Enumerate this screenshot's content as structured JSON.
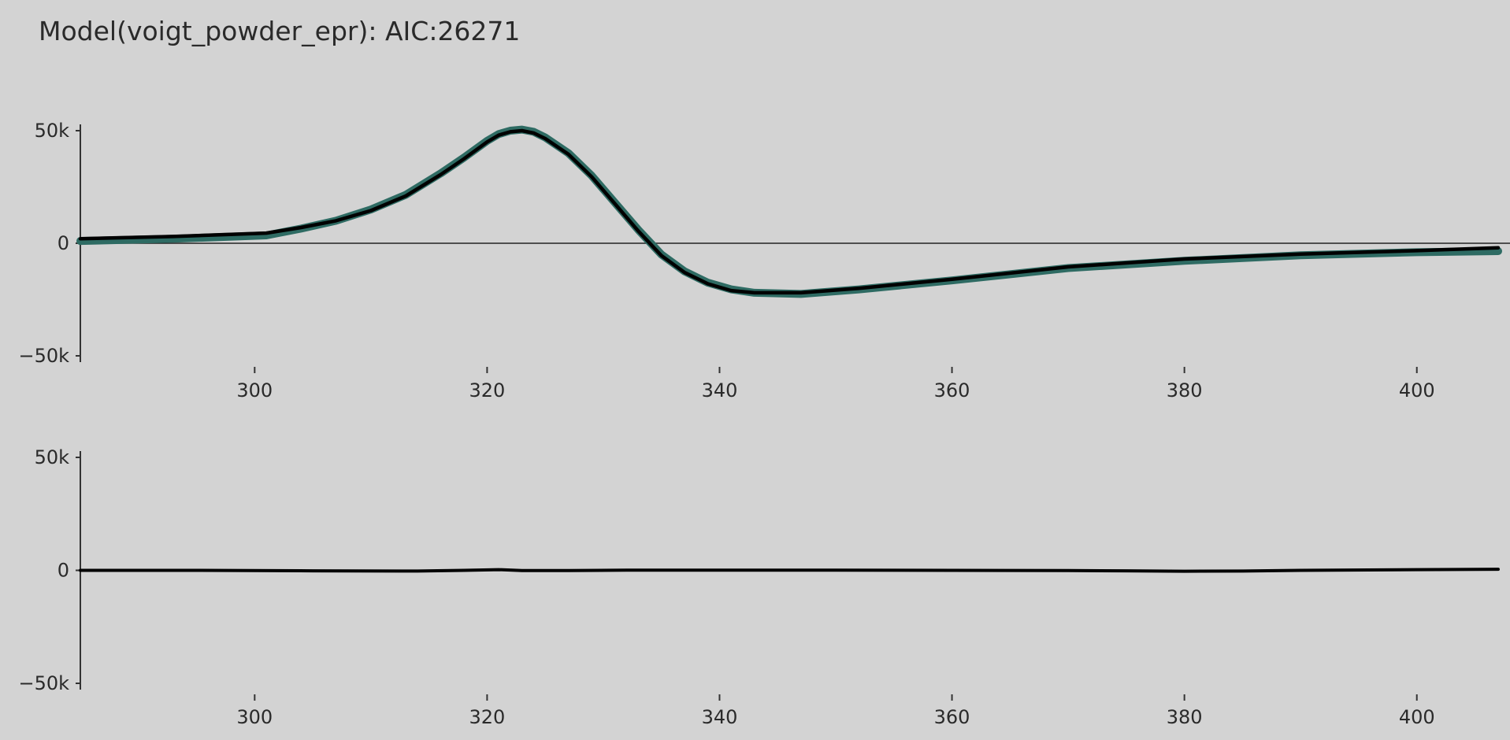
{
  "chart_data": {
    "title": "Model(voigt_powder_epr): AIC:26271",
    "panels": [
      {
        "name": "fit",
        "type": "line",
        "xlim": [
          285,
          407
        ],
        "ylim": [
          -50000,
          50000
        ],
        "xticks": [
          300,
          320,
          340,
          360,
          380,
          400
        ],
        "xtick_labels": [
          "300",
          "320",
          "340",
          "360",
          "380",
          "400"
        ],
        "yticks": [
          50000,
          0,
          -50000
        ],
        "ytick_labels": [
          "50k",
          "0",
          "−50k"
        ],
        "zero_line": true,
        "series": [
          {
            "color": "#2e6b63",
            "x": [
              285,
              293,
              301,
              304,
              307,
              310,
              313,
              316,
              318,
              320,
              321,
              322,
              323,
              324,
              325,
              327,
              329,
              331,
              333,
              335,
              337,
              339,
              341,
              343,
              347,
              352,
              360,
              370,
              380,
              390,
              400,
              407
            ],
            "y": [
              1000,
              2000,
              3500,
              6500,
              10000,
              15000,
              21500,
              31000,
              38000,
              45500,
              48500,
              50000,
              50500,
              49500,
              47000,
              40000,
              30000,
              18000,
              6000,
              -5000,
              -12500,
              -17500,
              -20500,
              -22000,
              -22500,
              -20500,
              -16500,
              -11000,
              -7800,
              -5300,
              -4000,
              -3500
            ]
          },
          {
            "color": "#000000",
            "x": [
              285,
              293,
              301,
              304,
              307,
              310,
              313,
              316,
              318,
              320,
              321,
              322,
              323,
              324,
              325,
              327,
              329,
              331,
              333,
              335,
              337,
              339,
              341,
              343,
              347,
              352,
              360,
              370,
              380,
              390,
              400,
              407
            ],
            "y": [
              2000,
              3000,
              4500,
              7000,
              10000,
              14500,
              21000,
              30500,
              37500,
              45000,
              48000,
              49500,
              50000,
              49000,
              46500,
              39500,
              29500,
              17500,
              5500,
              -5500,
              -13000,
              -18000,
              -21000,
              -22000,
              -22000,
              -20000,
              -16000,
              -10500,
              -7000,
              -4800,
              -3300,
              -2000
            ]
          }
        ]
      },
      {
        "name": "residual",
        "type": "line",
        "xlim": [
          285,
          407
        ],
        "ylim": [
          -50000,
          50000
        ],
        "xticks": [
          300,
          320,
          340,
          360,
          380,
          400
        ],
        "xtick_labels": [
          "300",
          "320",
          "340",
          "360",
          "380",
          "400"
        ],
        "yticks": [
          50000,
          0,
          -50000
        ],
        "ytick_labels": [
          "50k",
          "0",
          "−50k"
        ],
        "zero_line": false,
        "series": [
          {
            "color": "#000000",
            "x": [
              285,
              295,
              305,
              314,
              318,
              321,
              323,
              327,
              332,
              340,
              350,
              360,
              370,
              375,
              380,
              385,
              390,
              400,
              407
            ],
            "y": [
              0,
              0,
              -200,
              -300,
              0,
              300,
              -100,
              -100,
              100,
              100,
              100,
              0,
              -100,
              -200,
              -400,
              -300,
              0,
              300,
              500
            ]
          }
        ]
      }
    ]
  }
}
